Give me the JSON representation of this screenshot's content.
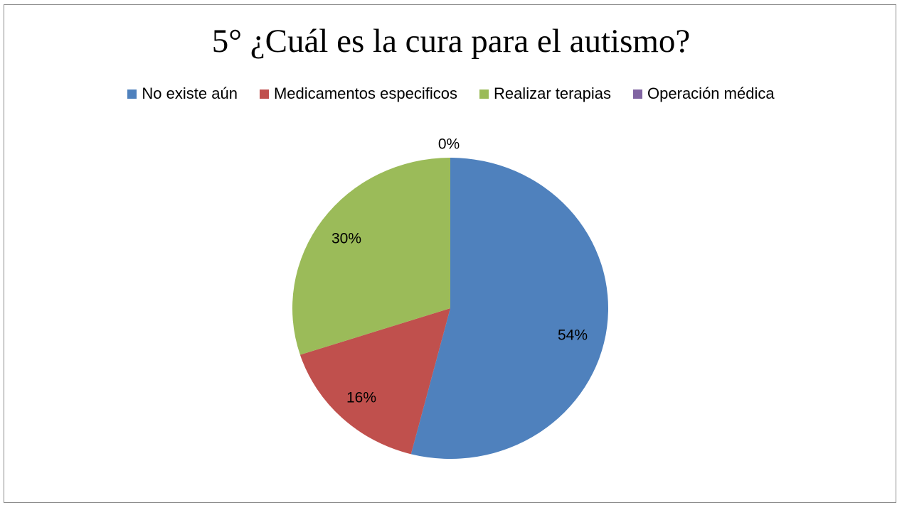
{
  "chart_data": {
    "type": "pie",
    "title": "5° ¿Cuál es la cura para el autismo?",
    "categories": [
      "No existe aún",
      "Medicamentos especificos",
      "Realizar terapias",
      "Operación médica"
    ],
    "values": [
      54,
      16,
      30,
      0
    ],
    "data_labels": [
      "54%",
      "16%",
      "30%",
      "0%"
    ],
    "unit": "%",
    "colors": [
      "#4F81BD",
      "#C0504D",
      "#9BBB59",
      "#8064A2"
    ],
    "legend_position": "top",
    "start_angle": "12 o'clock",
    "direction": "clockwise"
  }
}
